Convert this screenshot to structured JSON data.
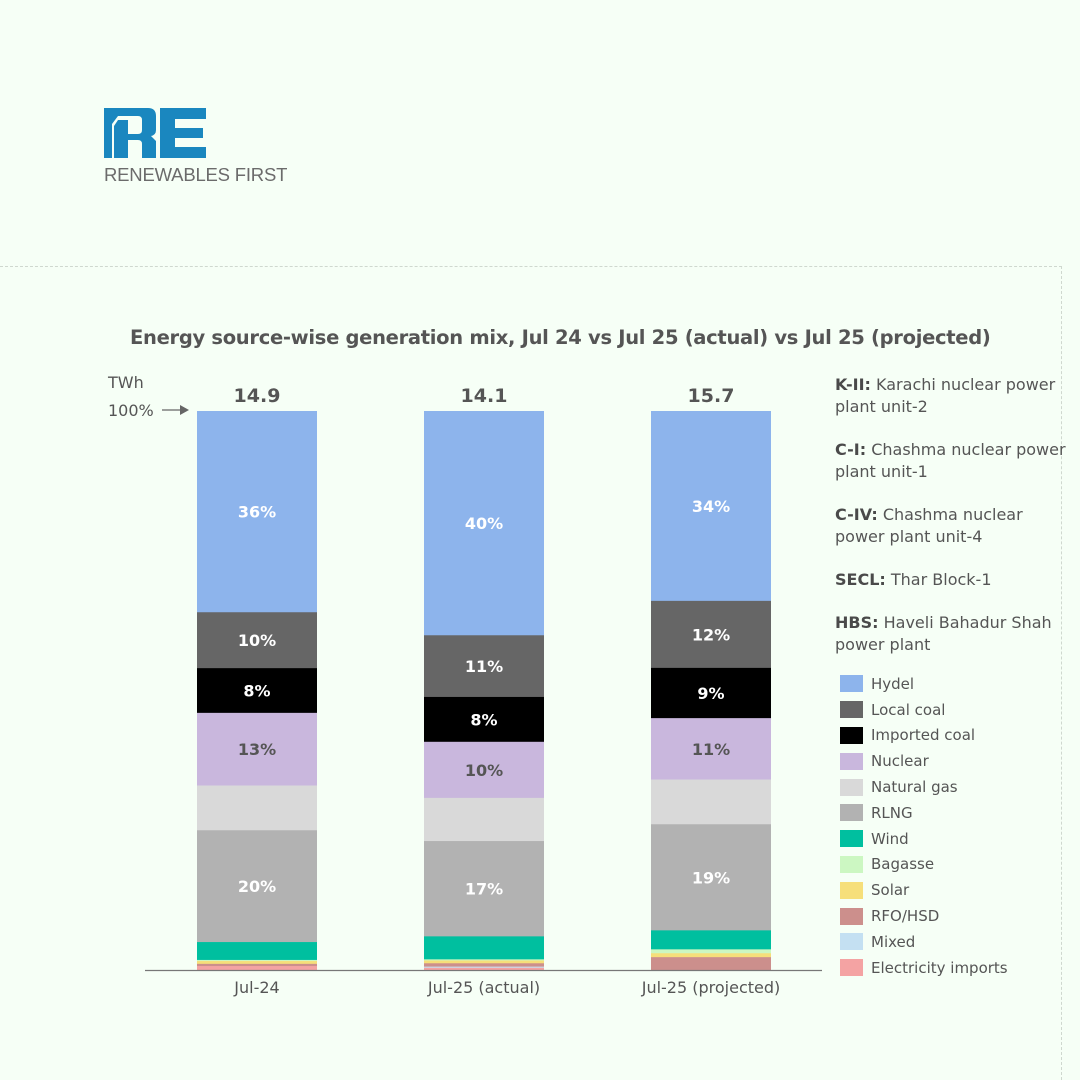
{
  "brand": {
    "logo_mark": "RE",
    "logo_text": "RENEWABLES FIRST",
    "logo_color": "#1a87bf"
  },
  "chart_data": {
    "type": "bar",
    "stacked": true,
    "percent_stacked": true,
    "title": "Energy source-wise generation mix, Jul 24 vs Jul 25 (actual) vs Jul 25 (projected)",
    "unit_label": "TWh",
    "top_marker_label": "100%",
    "categories": [
      "Jul-24",
      "Jul-25 (actual)",
      "Jul-25 (projected)"
    ],
    "totals_twh": [
      "14.9",
      "14.1",
      "15.7"
    ],
    "ylim": [
      0,
      100
    ],
    "grid": false,
    "legend_position": "right",
    "series": [
      {
        "name": "Hydel",
        "color": "#8db4ec",
        "label_color": "#ffffff",
        "values": [
          36,
          40,
          34
        ],
        "labels": [
          "36%",
          "40%",
          "34%"
        ]
      },
      {
        "name": "Local coal",
        "color": "#666666",
        "label_color": "#ffffff",
        "values": [
          10,
          11,
          12
        ],
        "labels": [
          "10%",
          "11%",
          "12%"
        ]
      },
      {
        "name": "Imported coal",
        "color": "#000000",
        "label_color": "#ffffff",
        "values": [
          8,
          8,
          9
        ],
        "labels": [
          "8%",
          "8%",
          "9%"
        ]
      },
      {
        "name": "Nuclear",
        "color": "#c9b7dd",
        "label_color": "#555555",
        "values": [
          13,
          10,
          11
        ],
        "labels": [
          "13%",
          "10%",
          "11%"
        ]
      },
      {
        "name": "Natural gas",
        "color": "#d9d9d9",
        "label_color": "#555555",
        "values": [
          8,
          7.7,
          8
        ],
        "labels": [
          "",
          "",
          ""
        ]
      },
      {
        "name": "RLNG",
        "color": "#b2b2b2",
        "label_color": "#ffffff",
        "values": [
          20,
          17,
          19
        ],
        "labels": [
          "20%",
          "17%",
          "19%"
        ]
      },
      {
        "name": "Wind",
        "color": "#00bf9f",
        "label_color": "#ffffff",
        "values": [
          3.2,
          4.1,
          3.4
        ],
        "labels": [
          "",
          "",
          ""
        ]
      },
      {
        "name": "Bagasse",
        "color": "#ccf7c2",
        "label_color": "#555555",
        "values": [
          0.2,
          0.2,
          0.7
        ],
        "labels": [
          "",
          "",
          ""
        ]
      },
      {
        "name": "Solar",
        "color": "#f6df7a",
        "label_color": "#555555",
        "values": [
          0.5,
          0.5,
          0.7
        ],
        "labels": [
          "",
          "",
          ""
        ]
      },
      {
        "name": "RFO/HSD",
        "color": "#cc8f8c",
        "label_color": "#ffffff",
        "values": [
          0.4,
          0.6,
          2.3
        ],
        "labels": [
          "",
          "",
          ""
        ]
      },
      {
        "name": "Mixed",
        "color": "#c4e0f2",
        "label_color": "#555555",
        "values": [
          0,
          0.2,
          0
        ],
        "labels": [
          "",
          "",
          ""
        ]
      },
      {
        "name": "Electricity imports",
        "color": "#f4a3a3",
        "label_color": "#555555",
        "values": [
          0.7,
          0.4,
          0
        ],
        "labels": [
          "",
          "",
          ""
        ]
      }
    ]
  },
  "notes": [
    {
      "abbr": "K-II:",
      "text": " Karachi nuclear power plant unit-2"
    },
    {
      "abbr": "C-I:",
      "text": " Chashma nuclear power plant unit-1"
    },
    {
      "abbr": "C-IV:",
      "text": " Chashma nuclear power plant unit-4"
    },
    {
      "abbr": "SECL:",
      "text": " Thar Block-1"
    },
    {
      "abbr": "HBS:",
      "text": " Haveli Bahadur Shah power plant"
    }
  ]
}
